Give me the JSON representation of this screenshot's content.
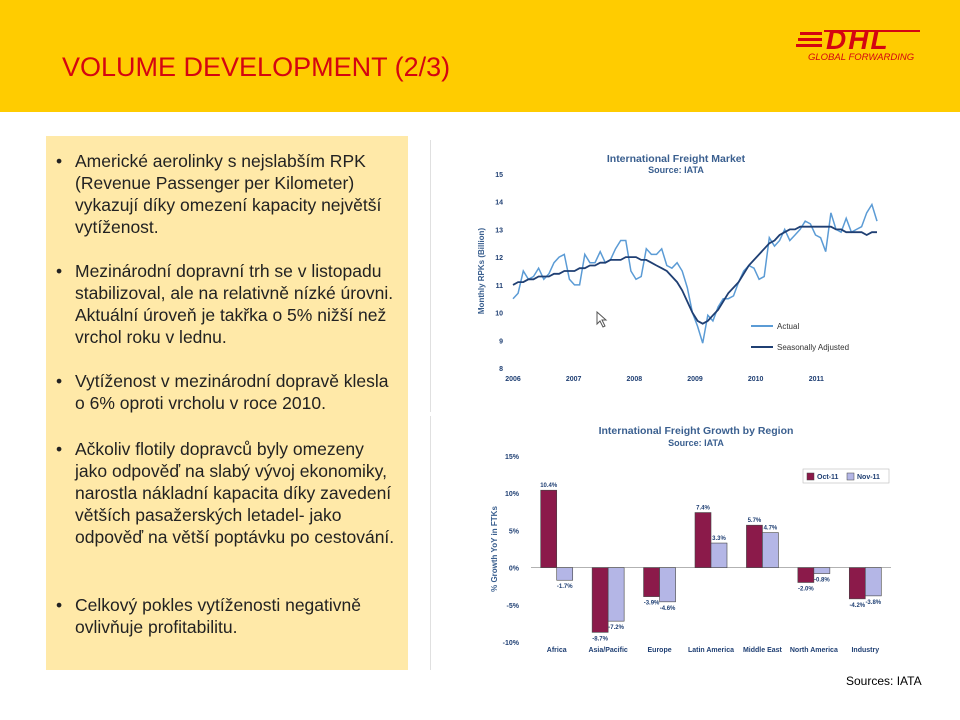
{
  "slide": {
    "title": "VOLUME DEVELOPMENT (2/3)",
    "logo": {
      "text": "DHL",
      "subtitle": "GLOBAL FORWARDING",
      "color": "#d40511"
    },
    "colors": {
      "header": "#ffcc00",
      "textbox": "#ffe9a8",
      "title": "#d40511"
    },
    "sources": "Sources: IATA"
  },
  "bullets": [
    {
      "text": "Americké aerolinky s nejslabším RPK (Revenue Passenger per Kilometer) vykazují díky omezení kapacity největší vytíženost."
    },
    {
      "text": "Mezinárodní dopravní trh se v listopadu stabilizoval, ale na relativně nízké úrovni. Aktuální úroveň je takřka o 5% nižší než vrchol roku v lednu."
    },
    {
      "text": "Vytíženost v mezinárodní dopravě klesla o 6% oproti vrcholu v roce 2010."
    },
    {
      "text": "Ačkoliv flotily dopravců byly omezeny jako odpověď na slabý vývoj ekonomiky, narostla nákladní kapacita díky zavedení větších pasažerských letadel- jako odpověď na větší poptávku po cestování."
    },
    {
      "text": "Celkový pokles vytíženosti negativně ovlivňuje profitabilitu."
    }
  ],
  "chart_data": [
    {
      "type": "line",
      "title": "International Freight Market",
      "subtitle": "Source: IATA",
      "ylabel": "Monthly RPKs (Billion)",
      "ylim": [
        8,
        15
      ],
      "yticks": [
        "8",
        "9",
        "10",
        "11",
        "12",
        "13",
        "14",
        "15"
      ],
      "xticks": [
        "2006",
        "2007",
        "2008",
        "2009",
        "2010",
        "2011"
      ],
      "xlim": [
        2006,
        2012
      ],
      "legend_position": "bottom-right",
      "series": [
        {
          "name": "Actual",
          "color": "#5b9bd5",
          "values": [
            10.5,
            10.7,
            11.5,
            11.2,
            11.3,
            11.6,
            11.2,
            11.4,
            11.8,
            12.0,
            12.1,
            11.2,
            11.0,
            11.0,
            12.1,
            11.8,
            11.8,
            12.2,
            11.8,
            11.9,
            12.3,
            12.6,
            12.6,
            11.5,
            11.2,
            11.3,
            12.3,
            12.1,
            12.1,
            12.3,
            11.7,
            11.6,
            11.8,
            11.5,
            10.9,
            10.0,
            9.5,
            8.9,
            9.9,
            9.7,
            10.2,
            10.5,
            10.5,
            10.6,
            11.1,
            11.5,
            11.7,
            11.6,
            11.2,
            11.3,
            12.7,
            12.4,
            12.6,
            13.0,
            12.6,
            12.8,
            13.0,
            13.3,
            13.2,
            12.8,
            12.7,
            12.2,
            13.6,
            13.0,
            12.9,
            13.4,
            12.9,
            13.0,
            13.1,
            13.6,
            13.9,
            13.3
          ]
        },
        {
          "name": "Seasonally Adjusted",
          "color": "#1f3f73",
          "values": [
            11.0,
            11.1,
            11.1,
            11.2,
            11.2,
            11.3,
            11.3,
            11.3,
            11.4,
            11.4,
            11.5,
            11.5,
            11.5,
            11.6,
            11.6,
            11.7,
            11.7,
            11.8,
            11.8,
            11.9,
            11.9,
            11.9,
            12.0,
            12.0,
            12.0,
            11.9,
            11.9,
            11.8,
            11.7,
            11.6,
            11.5,
            11.3,
            11.1,
            10.8,
            10.4,
            10.0,
            9.7,
            9.6,
            9.7,
            9.9,
            10.1,
            10.4,
            10.7,
            10.9,
            11.1,
            11.4,
            11.7,
            11.9,
            12.1,
            12.3,
            12.5,
            12.6,
            12.8,
            12.9,
            13.0,
            13.0,
            13.1,
            13.1,
            13.1,
            13.1,
            13.1,
            13.1,
            13.1,
            13.0,
            13.0,
            12.9,
            12.9,
            12.9,
            12.9,
            12.8,
            12.9,
            12.9
          ]
        }
      ]
    },
    {
      "type": "bar",
      "title": "International Freight Growth by Region",
      "subtitle": "Source: IATA",
      "ylabel": "% Growth YoY in FTKs",
      "ylim": [
        -10,
        15
      ],
      "yticks": [
        "-10%",
        "-5%",
        "0%",
        "5%",
        "10%",
        "15%"
      ],
      "categories": [
        "Africa",
        "Asia/Pacific",
        "Europe",
        "Latin America",
        "Middle East",
        "North America",
        "Industry"
      ],
      "legend_position": "top-right",
      "series": [
        {
          "name": "Oct-11",
          "color": "#8b1a4a",
          "values": [
            10.4,
            -8.7,
            -3.9,
            7.4,
            5.7,
            -2.0,
            -4.2
          ],
          "labels": [
            "10.4%",
            "-8.7%",
            "-3.9%",
            "7.4%",
            "5.7%",
            "-2.0%",
            "-4.2%"
          ]
        },
        {
          "name": "Nov-11",
          "color": "#b4b6e6",
          "values": [
            -1.7,
            -7.2,
            -4.6,
            3.3,
            4.7,
            -0.8,
            -3.8
          ],
          "labels": [
            "-1.7%",
            "-7.2%",
            "-4.6%",
            "3.3%",
            "4.7%",
            "-0.8%",
            "-3.8%"
          ]
        }
      ]
    }
  ]
}
